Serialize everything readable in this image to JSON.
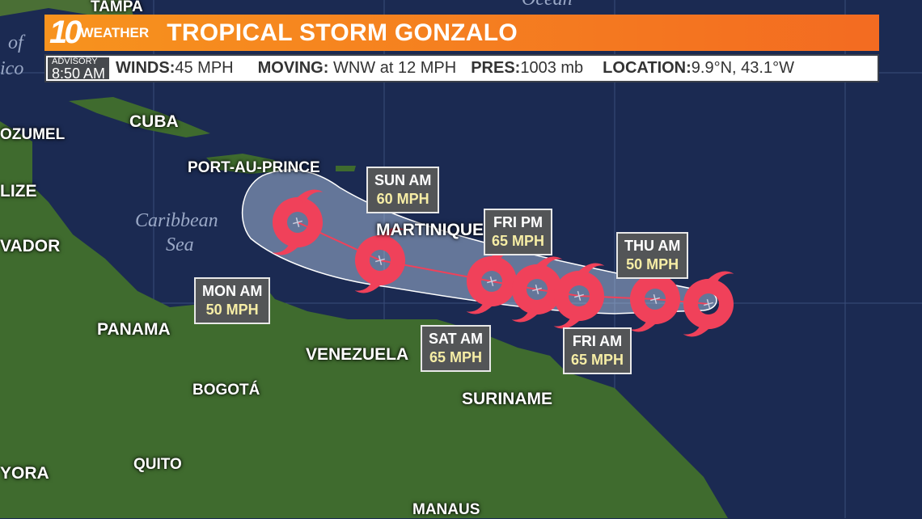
{
  "header": {
    "logo_number": "10",
    "logo_text": "WEATHER",
    "title": "TROPICAL STORM GONZALO"
  },
  "info": {
    "advisory_label": "ADVISORY",
    "advisory_time": "8:50 AM",
    "winds_label": "WINDS:",
    "winds_value": "45 MPH",
    "moving_label": "MOVING:",
    "moving_value": " WNW at 12 MPH",
    "pres_label": "PRES:",
    "pres_value": "1003 mb",
    "location_label": "LOCATION:",
    "location_value": "9.9°N, 43.1°W"
  },
  "places": [
    "TAMPA",
    "OZUMEL",
    "CUBA",
    "PORT-AU-PRINCE",
    "LIZE",
    "VADOR",
    "MARTINIQUE",
    "PANAMA",
    "VENEZUELA",
    "BOGOTÁ",
    "SURINAME",
    "QUITO",
    "YORA",
    "MANAUS"
  ],
  "seas": {
    "caribbean_1": "Caribbean",
    "caribbean_2": "Sea",
    "ocean": "Ocean",
    "gulf_1": "of",
    "gulf_2": "ico"
  },
  "forecast": [
    {
      "time": "SUN AM",
      "wind": "60 MPH"
    },
    {
      "time": "FRI PM",
      "wind": "65 MPH"
    },
    {
      "time": "THU AM",
      "wind": "50 MPH"
    },
    {
      "time": "MON AM",
      "wind": "50 MPH"
    },
    {
      "time": "SAT AM",
      "wind": "65 MPH"
    },
    {
      "time": "FRI AM",
      "wind": "65 MPH"
    }
  ],
  "colors": {
    "header_orange": "#f7931e",
    "storm_icon": "#f0415a",
    "ocean": "#1b2a52",
    "land": "#3f6b2e",
    "wind_text": "#f6eda5"
  },
  "icons": {
    "storm": "tropical-storm-icon"
  }
}
